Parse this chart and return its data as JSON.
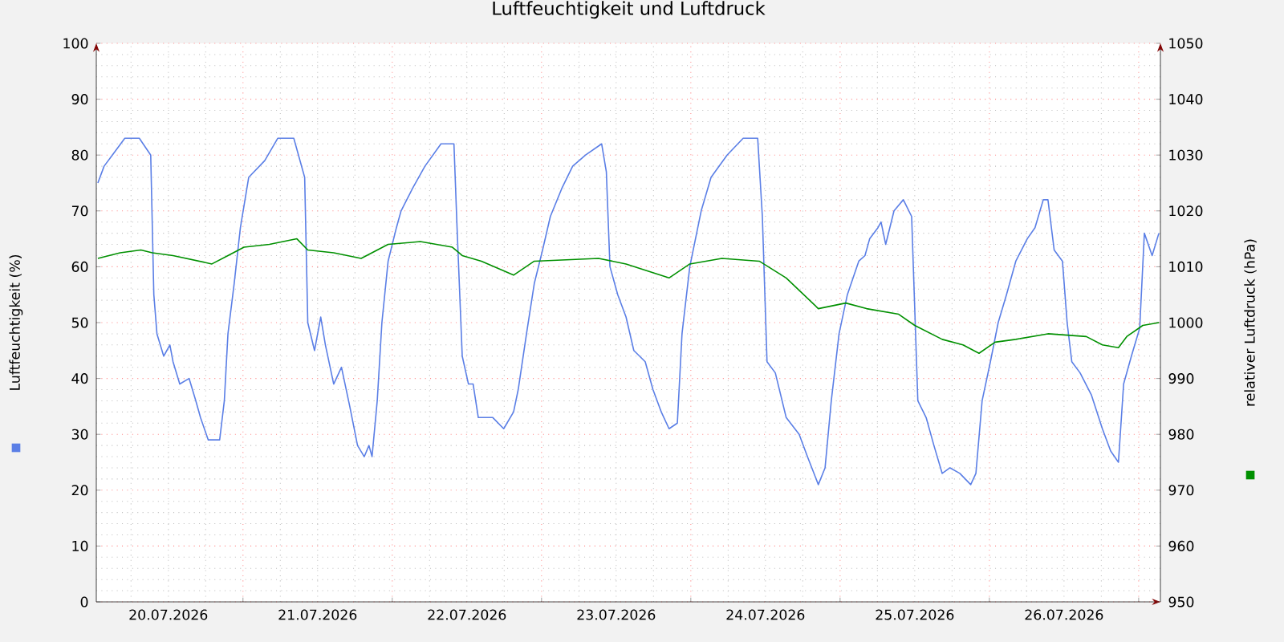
{
  "chart_data": {
    "type": "line",
    "title": "Luftfeuchtigkeit und Luftdruck",
    "ylabel": "Luftfeuchtigkeit (%)",
    "y2label": "relativer Luftdruck (hPa)",
    "xlim": [
      "2026-07-20T00:25",
      "2026-07-27T03:30"
    ],
    "xticks": [
      {
        "value": "2026-07-20T12:00",
        "label": "20.07.2026"
      },
      {
        "value": "2026-07-21T12:00",
        "label": "21.07.2026"
      },
      {
        "value": "2026-07-22T12:00",
        "label": "22.07.2026"
      },
      {
        "value": "2026-07-23T12:00",
        "label": "23.07.2026"
      },
      {
        "value": "2026-07-24T12:00",
        "label": "24.07.2026"
      },
      {
        "value": "2026-07-25T12:00",
        "label": "25.07.2026"
      },
      {
        "value": "2026-07-26T12:00",
        "label": "26.07.2026"
      },
      {
        "value": "2026-07-21T00:00",
        "label": null
      },
      {
        "value": "2026-07-22T00:00",
        "label": null
      },
      {
        "value": "2026-07-23T00:00",
        "label": null
      },
      {
        "value": "2026-07-24T00:00",
        "label": null
      },
      {
        "value": "2026-07-25T00:00",
        "label": null
      },
      {
        "value": "2026-07-26T00:00",
        "label": null
      },
      {
        "value": "2026-07-27T00:00",
        "label": null
      }
    ],
    "ylim": [
      0,
      100
    ],
    "yticks": [
      0,
      10,
      20,
      30,
      40,
      50,
      60,
      70,
      80,
      90,
      100
    ],
    "y2lim": [
      950,
      1050
    ],
    "y2ticks": [
      950,
      960,
      970,
      980,
      990,
      1000,
      1010,
      1020,
      1030,
      1040,
      1050
    ],
    "grid": true,
    "series": [
      {
        "color": "#5b7fe6",
        "x": [
          "2026-07-20T00:40",
          "2026-07-20T01:40",
          "2026-07-20T03:00",
          "2026-07-20T05:00",
          "2026-07-20T07:20",
          "2026-07-20T09:10",
          "2026-07-20T09:40",
          "2026-07-20T10:10",
          "2026-07-20T11:15",
          "2026-07-20T12:15",
          "2026-07-20T12:45",
          "2026-07-20T13:50",
          "2026-07-20T15:20",
          "2026-07-20T16:25",
          "2026-07-20T17:10",
          "2026-07-20T18:25",
          "2026-07-20T20:15",
          "2026-07-20T21:00",
          "2026-07-20T21:35",
          "2026-07-20T22:35",
          "2026-07-20T23:35",
          "2026-07-21T00:55",
          "2026-07-21T03:30",
          "2026-07-21T05:35",
          "2026-07-21T08:10",
          "2026-07-21T09:55",
          "2026-07-21T10:25",
          "2026-07-21T11:30",
          "2026-07-21T12:30",
          "2026-07-21T13:15",
          "2026-07-21T14:35",
          "2026-07-21T15:50",
          "2026-07-21T17:10",
          "2026-07-21T18:25",
          "2026-07-21T19:30",
          "2026-07-21T20:15",
          "2026-07-21T20:45",
          "2026-07-21T21:35",
          "2026-07-21T22:20",
          "2026-07-21T23:20",
          "2026-07-22T00:40",
          "2026-07-22T01:25",
          "2026-07-22T03:15",
          "2026-07-22T05:15",
          "2026-07-22T07:50",
          "2026-07-22T09:55",
          "2026-07-22T10:25",
          "2026-07-22T11:15",
          "2026-07-22T12:15",
          "2026-07-22T13:00",
          "2026-07-22T13:50",
          "2026-07-22T16:10",
          "2026-07-22T17:55",
          "2026-07-22T19:30",
          "2026-07-22T20:15",
          "2026-07-22T21:35",
          "2026-07-22T22:50",
          "2026-07-23T00:10",
          "2026-07-23T01:25",
          "2026-07-23T03:15",
          "2026-07-23T05:00",
          "2026-07-23T07:05",
          "2026-07-23T09:40",
          "2026-07-23T10:25",
          "2026-07-23T11:00",
          "2026-07-23T12:15",
          "2026-07-23T13:35",
          "2026-07-23T14:50",
          "2026-07-23T16:40",
          "2026-07-23T17:55",
          "2026-07-23T19:15",
          "2026-07-23T20:30",
          "2026-07-23T21:50",
          "2026-07-23T22:35",
          "2026-07-23T23:50",
          "2026-07-24T01:40",
          "2026-07-24T03:15",
          "2026-07-24T05:50",
          "2026-07-24T08:25",
          "2026-07-24T10:45",
          "2026-07-24T11:30",
          "2026-07-24T12:15",
          "2026-07-24T13:35",
          "2026-07-24T15:20",
          "2026-07-24T17:25",
          "2026-07-24T18:45",
          "2026-07-24T20:30",
          "2026-07-24T21:35",
          "2026-07-24T22:35",
          "2026-07-24T23:50",
          "2026-07-25T01:10",
          "2026-07-25T03:00",
          "2026-07-25T04:00",
          "2026-07-25T04:45",
          "2026-07-25T06:05",
          "2026-07-25T06:35",
          "2026-07-25T07:20",
          "2026-07-25T08:40",
          "2026-07-25T10:10",
          "2026-07-25T11:30",
          "2026-07-25T12:30",
          "2026-07-25T13:50",
          "2026-07-25T15:05",
          "2026-07-25T16:25",
          "2026-07-25T17:40",
          "2026-07-25T19:15",
          "2026-07-25T21:00",
          "2026-07-25T21:50",
          "2026-07-25T22:50",
          "2026-07-26T00:10",
          "2026-07-26T01:25",
          "2026-07-26T02:45",
          "2026-07-26T04:15",
          "2026-07-26T06:05",
          "2026-07-26T07:20",
          "2026-07-26T08:40",
          "2026-07-26T09:25",
          "2026-07-26T10:25",
          "2026-07-26T11:45",
          "2026-07-26T12:30",
          "2026-07-26T13:15",
          "2026-07-26T14:35",
          "2026-07-26T16:25",
          "2026-07-26T18:10",
          "2026-07-26T19:30",
          "2026-07-26T20:45",
          "2026-07-26T21:35",
          "2026-07-26T22:50",
          "2026-07-27T00:10",
          "2026-07-27T00:55",
          "2026-07-27T02:10",
          "2026-07-27T03:15"
        ],
        "values": [
          75,
          78,
          80,
          83,
          83,
          80,
          55,
          48,
          44,
          46,
          43,
          39,
          40,
          36,
          33,
          29,
          29,
          36,
          48,
          57,
          67,
          76,
          79,
          83,
          83,
          76,
          50,
          45,
          51,
          46,
          39,
          42,
          35,
          28,
          26,
          28,
          26,
          36,
          50,
          61,
          67,
          70,
          74,
          78,
          82,
          82,
          67,
          44,
          39,
          39,
          33,
          33,
          31,
          34,
          38,
          48,
          57,
          63,
          69,
          74,
          78,
          80,
          82,
          77,
          60,
          55,
          51,
          45,
          43,
          38,
          34,
          31,
          32,
          48,
          60,
          70,
          76,
          80,
          83,
          83,
          69,
          43,
          41,
          33,
          30,
          26,
          21,
          24,
          36,
          48,
          55,
          61,
          62,
          65,
          67,
          68,
          64,
          70,
          72,
          69,
          36,
          33,
          28,
          23,
          24,
          23,
          21,
          23,
          36,
          43,
          50,
          55,
          61,
          65,
          67,
          72,
          72,
          63,
          61,
          50,
          43,
          41,
          37,
          31,
          27,
          25,
          39,
          44,
          49,
          66,
          62,
          66
        ]
      },
      {
        "color": "#009000",
        "axis": "y2",
        "x": [
          "2026-07-20T00:40",
          "2026-07-20T04:15",
          "2026-07-20T07:35",
          "2026-07-20T09:25",
          "2026-07-20T12:45",
          "2026-07-20T19:00",
          "2026-07-20T21:35",
          "2026-07-21T00:10",
          "2026-07-21T04:15",
          "2026-07-21T08:40",
          "2026-07-21T10:25",
          "2026-07-21T14:35",
          "2026-07-21T19:00",
          "2026-07-21T23:20",
          "2026-07-22T04:30",
          "2026-07-22T09:40",
          "2026-07-22T11:15",
          "2026-07-22T14:20",
          "2026-07-22T19:30",
          "2026-07-22T22:50",
          "2026-07-23T09:10",
          "2026-07-23T13:35",
          "2026-07-23T20:30",
          "2026-07-23T23:50",
          "2026-07-24T05:00",
          "2026-07-24T11:00",
          "2026-07-24T15:20",
          "2026-07-24T20:30",
          "2026-07-25T00:55",
          "2026-07-25T04:15",
          "2026-07-25T09:25",
          "2026-07-25T12:00",
          "2026-07-25T16:25",
          "2026-07-25T19:45",
          "2026-07-25T22:20",
          "2026-07-26T00:55",
          "2026-07-26T04:15",
          "2026-07-26T09:25",
          "2026-07-26T15:35",
          "2026-07-26T18:10",
          "2026-07-26T20:45",
          "2026-07-26T22:05",
          "2026-07-27T00:40",
          "2026-07-27T03:15"
        ],
        "values": [
          1011.5,
          1012.5,
          1013,
          1012.5,
          1012,
          1010.5,
          1012,
          1013.5,
          1014,
          1015,
          1013,
          1012.5,
          1011.5,
          1014,
          1014.5,
          1013.5,
          1012,
          1011,
          1008.5,
          1011,
          1011.5,
          1010.5,
          1008,
          1010.5,
          1011.5,
          1011,
          1008,
          1002.5,
          1003.5,
          1002.5,
          1001.5,
          999.5,
          997,
          996,
          994.5,
          996.5,
          997,
          998,
          997.5,
          996,
          995.5,
          997.5,
          999.5,
          1000
        ]
      }
    ]
  }
}
